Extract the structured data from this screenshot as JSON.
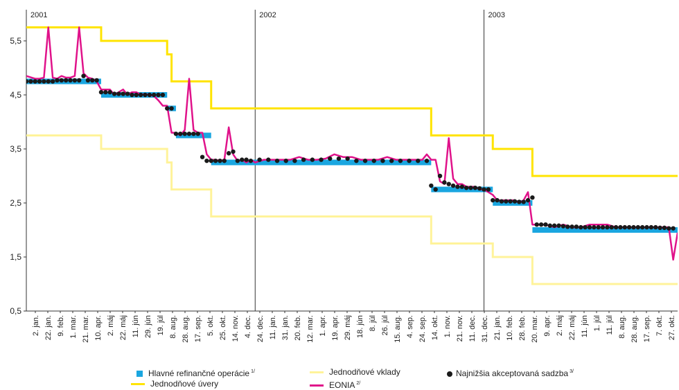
{
  "chart_data": {
    "type": "line",
    "xlabel": "",
    "ylabel": "",
    "ylim": [
      0.5,
      6.0
    ],
    "yticks": [
      "0,5",
      "1,5",
      "2,5",
      "3,5",
      "4,5",
      "5,5"
    ],
    "grid": false,
    "legend_position": "bottom",
    "year_markers": [
      {
        "label": "2001",
        "week": 0
      },
      {
        "label": "2002",
        "week": 52
      },
      {
        "label": "2003",
        "week": 104
      }
    ],
    "x_tick_labels": [
      "2. jan.",
      "22. jan.",
      "9. feb.",
      "1. mar.",
      "21. mar.",
      "10. apr.",
      "2. máj",
      "22. máj",
      "11. jún",
      "29. jún",
      "19. júl",
      "8. aug.",
      "28. aug.",
      "17. sep.",
      "5. okt.",
      "25. okt.",
      "14. nov.",
      "4. dec.",
      "24. dec.",
      "11. jan.",
      "31. jan.",
      "20. feb.",
      "12. mar.",
      "1. apr.",
      "19. apr.",
      "29. máj",
      "18. jún",
      "8. júl",
      "26. júl",
      "15. aug.",
      "4. sep.",
      "24. sep.",
      "14. okt.",
      "1. nov.",
      "21. nov.",
      "11. dec.",
      "31. dec.",
      "21. jan.",
      "10. feb.",
      "28. feb.",
      "20. mar.",
      "9. apr.",
      "2. máj",
      "22. máj",
      "11. jún",
      "1. júl",
      "11. júl",
      "8. aug.",
      "28. aug.",
      "17. sep.",
      "7. okt.",
      "27. okt."
    ],
    "x_weeks_total": 148,
    "series": [
      {
        "name": "Jednodňové úvery",
        "color": "#ffe400",
        "step_x": [
          0,
          17,
          32,
          33,
          42,
          92,
          106,
          115,
          148
        ],
        "step_y": [
          5.75,
          5.5,
          5.25,
          4.75,
          4.25,
          3.75,
          3.5,
          3.0,
          3.0
        ]
      },
      {
        "name": "Jednodňové vklady",
        "color": "#fff39a",
        "step_x": [
          0,
          17,
          32,
          33,
          42,
          92,
          106,
          115,
          148
        ],
        "step_y": [
          3.75,
          3.5,
          3.25,
          2.75,
          2.25,
          1.75,
          1.5,
          1.0,
          1.0
        ]
      },
      {
        "name": "Hlavné refinančné operácie",
        "color": "#1aa6e0",
        "segments": [
          {
            "x0": 0,
            "x1": 17,
            "y": 4.75
          },
          {
            "x0": 17,
            "x1": 32,
            "y": 4.5
          },
          {
            "x0": 32,
            "x1": 34,
            "y": 4.25
          },
          {
            "x0": 34,
            "x1": 42,
            "y": 3.75
          },
          {
            "x0": 42,
            "x1": 92,
            "y": 3.25
          },
          {
            "x0": 92,
            "x1": 106,
            "y": 2.75
          },
          {
            "x0": 106,
            "x1": 115,
            "y": 2.5
          },
          {
            "x0": 115,
            "x1": 148,
            "y": 2.0
          }
        ]
      },
      {
        "name": "EONIA",
        "color": "#e0128a",
        "x": [
          0,
          2,
          3,
          4,
          5,
          6,
          7,
          8,
          9,
          10,
          11,
          12,
          13,
          14,
          15,
          16,
          17,
          18,
          19,
          20,
          21,
          22,
          23,
          24,
          25,
          26,
          27,
          28,
          29,
          30,
          31,
          32,
          33,
          34,
          35,
          36,
          37,
          38,
          39,
          40,
          41,
          42,
          43,
          44,
          45,
          46,
          47,
          48,
          49,
          50,
          51,
          52,
          54,
          56,
          58,
          60,
          62,
          64,
          66,
          68,
          70,
          72,
          74,
          76,
          78,
          80,
          82,
          84,
          86,
          88,
          90,
          91,
          92,
          93,
          94,
          95,
          96,
          97,
          98,
          99,
          100,
          101,
          102,
          103,
          104,
          105,
          106,
          107,
          108,
          109,
          110,
          111,
          112,
          113,
          114,
          115,
          116,
          118,
          120,
          122,
          124,
          126,
          128,
          130,
          132,
          134,
          136,
          138,
          140,
          142,
          144,
          146,
          147,
          148
        ],
        "y": [
          4.85,
          4.8,
          4.8,
          4.82,
          5.75,
          4.82,
          4.8,
          4.85,
          4.82,
          4.82,
          4.85,
          5.75,
          4.9,
          4.82,
          4.8,
          4.75,
          4.6,
          4.6,
          4.6,
          4.5,
          4.55,
          4.6,
          4.5,
          4.55,
          4.55,
          4.5,
          4.52,
          4.5,
          4.48,
          4.4,
          4.3,
          4.3,
          3.8,
          3.8,
          3.75,
          3.85,
          4.8,
          3.85,
          3.8,
          3.8,
          3.4,
          3.3,
          3.3,
          3.28,
          3.3,
          3.9,
          3.4,
          3.28,
          3.3,
          3.25,
          3.3,
          3.25,
          3.3,
          3.3,
          3.3,
          3.3,
          3.35,
          3.3,
          3.3,
          3.32,
          3.4,
          3.35,
          3.35,
          3.3,
          3.3,
          3.3,
          3.35,
          3.3,
          3.3,
          3.3,
          3.3,
          3.4,
          3.3,
          3.3,
          2.9,
          2.85,
          3.7,
          2.95,
          2.85,
          2.85,
          2.8,
          2.8,
          2.8,
          2.75,
          2.75,
          2.7,
          2.65,
          2.55,
          2.55,
          2.55,
          2.55,
          2.55,
          2.5,
          2.55,
          2.7,
          2.1,
          2.1,
          2.1,
          2.05,
          2.1,
          2.05,
          2.05,
          2.1,
          2.1,
          2.1,
          2.05,
          2.05,
          2.05,
          2.05,
          2.05,
          2.05,
          2.05,
          1.45,
          1.95
        ]
      },
      {
        "name": "Najnižšia akceptovaná sadzba",
        "color": "#1a1a1a",
        "x": [
          0,
          1,
          2,
          3,
          4,
          5,
          6,
          7,
          8,
          9,
          10,
          11,
          12,
          13,
          14,
          15,
          16,
          17,
          18,
          19,
          20,
          21,
          22,
          23,
          24,
          25,
          26,
          27,
          28,
          29,
          30,
          31,
          32,
          33,
          34,
          35,
          36,
          37,
          38,
          39,
          40,
          41,
          42,
          43,
          44,
          45,
          46,
          47,
          48,
          49,
          50,
          51,
          53,
          55,
          57,
          59,
          61,
          63,
          65,
          67,
          69,
          71,
          73,
          75,
          77,
          79,
          81,
          83,
          85,
          87,
          89,
          91,
          92,
          93,
          94,
          95,
          96,
          97,
          98,
          99,
          100,
          101,
          102,
          103,
          104,
          105,
          106,
          107,
          108,
          109,
          110,
          111,
          112,
          113,
          114,
          115,
          116,
          117,
          118,
          119,
          120,
          121,
          122,
          123,
          124,
          125,
          126,
          127,
          128,
          129,
          130,
          131,
          132,
          133,
          134,
          135,
          136,
          137,
          138,
          139,
          140,
          141,
          142,
          143,
          144,
          145,
          146,
          147
        ],
        "y": [
          4.75,
          4.75,
          4.75,
          4.75,
          4.75,
          4.75,
          4.75,
          4.77,
          4.77,
          4.77,
          4.77,
          4.77,
          4.77,
          4.85,
          4.77,
          4.77,
          4.77,
          4.55,
          4.55,
          4.55,
          4.52,
          4.52,
          4.52,
          4.52,
          4.5,
          4.5,
          4.5,
          4.5,
          4.5,
          4.5,
          4.5,
          4.5,
          4.25,
          4.25,
          3.78,
          3.78,
          3.78,
          3.78,
          3.78,
          3.78,
          3.35,
          3.28,
          3.28,
          3.28,
          3.28,
          3.28,
          3.42,
          3.45,
          3.28,
          3.3,
          3.3,
          3.28,
          3.3,
          3.3,
          3.28,
          3.28,
          3.28,
          3.3,
          3.3,
          3.3,
          3.32,
          3.32,
          3.32,
          3.28,
          3.28,
          3.28,
          3.28,
          3.28,
          3.28,
          3.28,
          3.28,
          3.28,
          2.82,
          2.75,
          3.0,
          2.88,
          2.85,
          2.82,
          2.8,
          2.8,
          2.78,
          2.78,
          2.78,
          2.77,
          2.75,
          2.75,
          2.55,
          2.55,
          2.53,
          2.53,
          2.53,
          2.53,
          2.52,
          2.52,
          2.55,
          2.6,
          2.1,
          2.1,
          2.1,
          2.08,
          2.08,
          2.08,
          2.07,
          2.06,
          2.06,
          2.06,
          2.05,
          2.05,
          2.05,
          2.05,
          2.05,
          2.05,
          2.05,
          2.05,
          2.05,
          2.05,
          2.05,
          2.05,
          2.05,
          2.05,
          2.05,
          2.05,
          2.05,
          2.05,
          2.04,
          2.04,
          2.03,
          2.03
        ]
      }
    ]
  },
  "legend": {
    "hro": "Hlavné refinančné operácie",
    "hro_sup": "1/",
    "vklady": "Jednodňové vklady",
    "najnizsia": "Najnižšia akceptovaná sadzba",
    "najnizsia_sup": "3/",
    "uvery": "Jednodňové úvery",
    "eonia": "EONIA",
    "eonia_sup": "2/"
  }
}
